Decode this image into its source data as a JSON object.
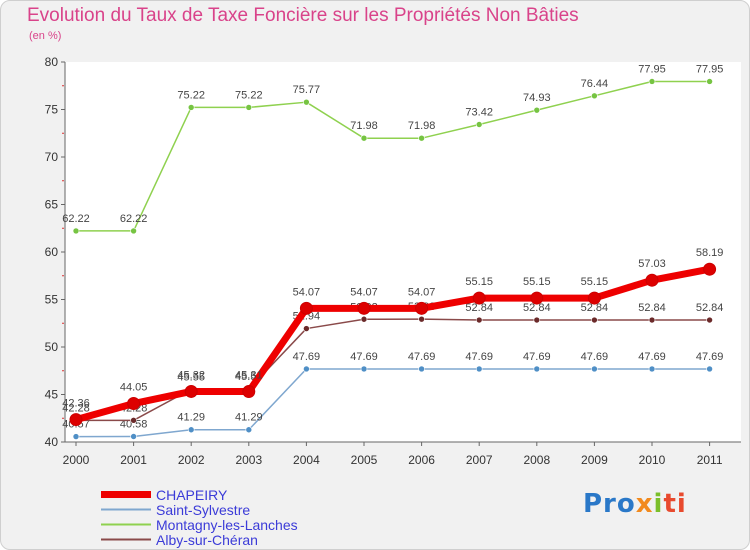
{
  "chart_data": {
    "type": "line",
    "title": "Evolution du Taux de Taxe Foncière sur les Propriétés Non Bâties",
    "unit_label": "(en %)",
    "x": [
      "2000",
      "2001",
      "2002",
      "2003",
      "2004",
      "2005",
      "2006",
      "2007",
      "2008",
      "2009",
      "2010",
      "2011"
    ],
    "ylim": [
      40,
      80
    ],
    "yticks": [
      40,
      45,
      50,
      55,
      60,
      65,
      70,
      75,
      80
    ],
    "grid": false,
    "legend_position": "bottom-left",
    "series": [
      {
        "name": "Montagny-les-Lanches",
        "color": "#8fd14f",
        "dot": "#76c442",
        "values": [
          62.22,
          62.22,
          75.22,
          75.22,
          75.77,
          71.98,
          71.98,
          73.42,
          74.93,
          76.44,
          77.95,
          77.95
        ],
        "labels": [
          "62.22",
          "62.22",
          "75.22",
          "75.22",
          "75.77",
          "71.98",
          "71.98",
          "73.42",
          "74.93",
          "76.44",
          "77.95",
          "77.95"
        ]
      },
      {
        "name": "Saint-Sylvestre",
        "color": "#7fa7cf",
        "dot": "#4f8fc6",
        "values": [
          40.57,
          40.58,
          41.29,
          41.29,
          47.69,
          47.69,
          47.69,
          47.69,
          47.69,
          47.69,
          47.69,
          47.69
        ],
        "labels": [
          "40.57",
          "40.58",
          "41.29",
          "41.29",
          "47.69",
          "47.69",
          "47.69",
          "47.69",
          "47.69",
          "47.69",
          "47.69",
          "47.69"
        ]
      },
      {
        "name": "Alby-sur-Chéran",
        "color": "#8a4a4a",
        "dot": "#6b2a2a",
        "values": [
          42.28,
          42.28,
          45.55,
          45.56,
          51.94,
          52.92,
          52.93,
          52.84,
          52.84,
          52.84,
          52.84,
          52.84
        ],
        "labels": [
          "42.28",
          "42.28",
          "45.55",
          "45.56",
          "51.94",
          "52.92",
          "52.93",
          "52.84",
          "52.84",
          "52.84",
          "52.84",
          "52.84"
        ]
      },
      {
        "name": "CHAPEIRY",
        "color": "#ee0000",
        "dot": "#dd0000",
        "values": [
          42.36,
          44.05,
          45.32,
          45.31,
          54.07,
          54.07,
          54.07,
          55.15,
          55.15,
          55.15,
          57.03,
          58.19
        ],
        "labels": [
          "42.36",
          "44.05",
          "45.32",
          "45.31",
          "54.07",
          "54.07",
          "54.07",
          "55.15",
          "55.15",
          "55.15",
          "57.03",
          "58.19"
        ]
      }
    ]
  },
  "legend": {
    "items": [
      {
        "label": "CHAPEIRY"
      },
      {
        "label": "Saint-Sylvestre"
      },
      {
        "label": "Montagny-les-Lanches"
      },
      {
        "label": "Alby-sur-Chéran"
      }
    ]
  },
  "logo": {
    "part1": "Pro",
    "part2": "x",
    "part3": "i",
    "part4": "ti"
  }
}
